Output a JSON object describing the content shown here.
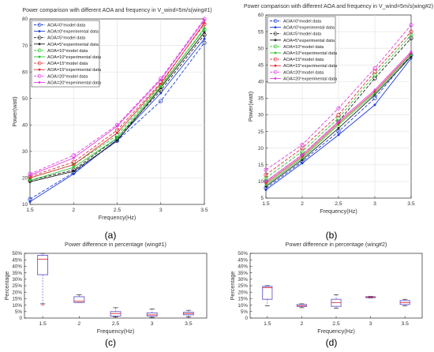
{
  "colors": {
    "axis": "#262626",
    "grid": "#e0e0e0",
    "box": "#6a5acd",
    "median": "#e0303a",
    "outlier": "#e0303a"
  },
  "chart_data": [
    {
      "panel": "(a)",
      "type": "line",
      "title": "Power comparison with different AOA and frequency in V_wind=5m/s(wing#1)",
      "xlabel": "Frequency(Hz)",
      "ylabel": "Power(watt)",
      "xlim": [
        1.5,
        3.5
      ],
      "ylim": [
        10,
        80
      ],
      "xticks": [
        "1.5",
        "2",
        "2.5",
        "3",
        "3.5"
      ],
      "yticks": [
        "10",
        "20",
        "30",
        "40",
        "50",
        "60",
        "70",
        "80"
      ],
      "grid": true,
      "legend_position": "top-left",
      "x": [
        1.5,
        2,
        2.5,
        3,
        3.5
      ],
      "series": [
        {
          "name": "AOA=0°model data",
          "color": "#1f3fd8",
          "style": "model",
          "marker": "circle",
          "values": [
            12,
            22,
            34,
            49,
            71
          ]
        },
        {
          "name": "AOA=0°experimental data",
          "color": "#1f3fd8",
          "style": "exp",
          "marker": "dot",
          "values": [
            11,
            21.5,
            34.5,
            52,
            72.5
          ]
        },
        {
          "name": "AOA=5°model data",
          "color": "#222222",
          "style": "model",
          "marker": "circle",
          "values": [
            19,
            23,
            35,
            53,
            74
          ]
        },
        {
          "name": "AOA=5°experimental data",
          "color": "#222222",
          "style": "exp",
          "marker": "dot",
          "values": [
            18.5,
            22.5,
            34,
            54,
            75
          ]
        },
        {
          "name": "AOA=10°model data",
          "color": "#27c427",
          "style": "model",
          "marker": "circle",
          "values": [
            20,
            25,
            36,
            55,
            76
          ]
        },
        {
          "name": "AOA=10°experimental data",
          "color": "#27c427",
          "style": "exp",
          "marker": "dot",
          "values": [
            19,
            24,
            35,
            54.5,
            76.5
          ]
        },
        {
          "name": "AOA=15°model data",
          "color": "#e0303a",
          "style": "model",
          "marker": "circle",
          "values": [
            20.5,
            26,
            38,
            56,
            78
          ]
        },
        {
          "name": "AOA=15°experimental data",
          "color": "#e0303a",
          "style": "exp",
          "marker": "dot",
          "values": [
            20,
            25,
            37,
            55.5,
            78.5
          ]
        },
        {
          "name": "AOA=20°model data",
          "color": "#e040e0",
          "style": "model",
          "marker": "circle",
          "values": [
            21.5,
            28.5,
            40,
            57.5,
            80
          ]
        },
        {
          "name": "AOA=20°experimental data",
          "color": "#e040e0",
          "style": "exp",
          "marker": "dot",
          "values": [
            21,
            27.5,
            39.5,
            57,
            79.5
          ]
        }
      ]
    },
    {
      "panel": "(b)",
      "type": "line",
      "title": "Power comparison with different AOA and frequency in V_wind=5m/s(wing#2)",
      "xlabel": "Frequency(Hz)",
      "ylabel": "Power(watt)",
      "xlim": [
        1.5,
        3.5
      ],
      "ylim": [
        5,
        60
      ],
      "xticks": [
        "1.5",
        "2",
        "2.5",
        "3",
        "3.5"
      ],
      "yticks": [
        "5",
        "10",
        "15",
        "20",
        "25",
        "30",
        "35",
        "40",
        "45",
        "50",
        "55",
        "60"
      ],
      "grid": true,
      "legend_position": "top-left",
      "x": [
        1.5,
        2,
        2.5,
        3,
        3.5
      ],
      "series": [
        {
          "name": "AOA=0°model data",
          "color": "#1f3fd8",
          "style": "model",
          "marker": "circle",
          "values": [
            8,
            16,
            25,
            35,
            48
          ]
        },
        {
          "name": "AOA=0°experimental data",
          "color": "#1f3fd8",
          "style": "exp",
          "marker": "dot",
          "values": [
            7.5,
            15.5,
            24,
            33,
            47
          ]
        },
        {
          "name": "AOA=5°model data",
          "color": "#222222",
          "style": "model",
          "marker": "circle",
          "values": [
            10,
            18,
            28,
            41,
            53
          ]
        },
        {
          "name": "AOA=5°experimental data",
          "color": "#222222",
          "style": "exp",
          "marker": "dot",
          "values": [
            8.5,
            16.5,
            26,
            36,
            47.5
          ]
        },
        {
          "name": "AOA=10°model data",
          "color": "#27c427",
          "style": "model",
          "marker": "circle",
          "values": [
            11,
            19,
            29,
            42,
            54
          ]
        },
        {
          "name": "AOA=10°experimental data",
          "color": "#27c427",
          "style": "exp",
          "marker": "dot",
          "values": [
            9,
            17,
            27,
            36.5,
            48
          ]
        },
        {
          "name": "AOA=15°model data",
          "color": "#e0303a",
          "style": "model",
          "marker": "circle",
          "values": [
            12,
            20,
            30,
            43,
            55
          ]
        },
        {
          "name": "AOA=15°experimental data",
          "color": "#e0303a",
          "style": "exp",
          "marker": "dot",
          "values": [
            9.5,
            17.5,
            27.5,
            37,
            48.5
          ]
        },
        {
          "name": "AOA=20°model data",
          "color": "#e040e0",
          "style": "model",
          "marker": "circle",
          "values": [
            13.5,
            21,
            32,
            44,
            57
          ]
        },
        {
          "name": "AOA=20°experimental data",
          "color": "#e040e0",
          "style": "exp",
          "marker": "dot",
          "values": [
            10,
            18,
            28,
            37.5,
            49
          ]
        }
      ]
    },
    {
      "panel": "(c)",
      "type": "box",
      "title": "Power difference in percentage (wing#1)",
      "xlabel": "Frequency(Hz)",
      "ylabel": "Percentage",
      "ylim": [
        0,
        50
      ],
      "yticks": [
        "0",
        "5%",
        "10%",
        "15%",
        "20%",
        "25%",
        "30%",
        "35%",
        "40%",
        "45%",
        "50%"
      ],
      "grid": false,
      "categories": [
        "1.5",
        "2",
        "2.5",
        "3",
        "3.5"
      ],
      "boxes": [
        {
          "min": 11,
          "q1": 33.5,
          "median": 45.5,
          "q3": 48.5,
          "max": 50,
          "outliers": [
            10
          ]
        },
        {
          "min": 12,
          "q1": 12,
          "median": 13,
          "q3": 16.5,
          "max": 18,
          "outliers": []
        },
        {
          "min": 1,
          "q1": 1.5,
          "median": 3.5,
          "q3": 5,
          "max": 8,
          "outliers": []
        },
        {
          "min": 0.5,
          "q1": 1.5,
          "median": 2.5,
          "q3": 4,
          "max": 7,
          "outliers": []
        },
        {
          "min": 1,
          "q1": 2.5,
          "median": 3.5,
          "q3": 4.5,
          "max": 6,
          "outliers": []
        }
      ]
    },
    {
      "panel": "(d)",
      "type": "box",
      "title": "Power difference in percentage (wing#2)",
      "xlabel": "Frequency(Hz)",
      "ylabel": "Percentage",
      "ylim": [
        0,
        50
      ],
      "yticks": [
        "0",
        "5%",
        "10%",
        "15%",
        "20%",
        "25%",
        "30%",
        "35%",
        "40%",
        "45%",
        "50%"
      ],
      "grid": false,
      "categories": [
        "1.5",
        "2",
        "2.5",
        "3",
        "3.5"
      ],
      "boxes": [
        {
          "min": 9.5,
          "q1": 14.5,
          "median": 23.5,
          "q3": 24.5,
          "max": 25,
          "outliers": []
        },
        {
          "min": 8,
          "q1": 9,
          "median": 9.5,
          "q3": 10.5,
          "max": 11,
          "outliers": []
        },
        {
          "min": 7.5,
          "q1": 9,
          "median": 12,
          "q3": 14.5,
          "max": 18,
          "outliers": []
        },
        {
          "min": 15.5,
          "q1": 15.8,
          "median": 16.2,
          "q3": 16.5,
          "max": 16.8,
          "outliers": []
        },
        {
          "min": 9.5,
          "q1": 10.5,
          "median": 12,
          "q3": 13.5,
          "max": 14.5,
          "outliers": []
        }
      ]
    }
  ]
}
